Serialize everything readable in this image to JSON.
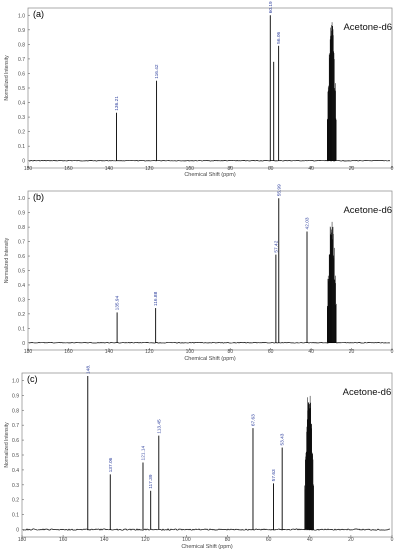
{
  "figure": {
    "panels": [
      {
        "id": "a",
        "letter": "(a)",
        "solvent_label": "Acetone-d6",
        "xlabel": "Chemical Shift (ppm)",
        "ylabel": "Normalized Intensity"
      },
      {
        "id": "b",
        "letter": "(b)",
        "solvent_label": "Acetone-d6",
        "xlabel": "Chemical Shift (ppm)",
        "ylabel": "Normalized Intensity"
      },
      {
        "id": "c",
        "letter": "(c)",
        "solvent_label": "Acetone-d6",
        "xlabel": "Chemical Shift (ppm)",
        "ylabel": "Normalized Intensity"
      }
    ]
  },
  "chart_data": [
    {
      "type": "line",
      "title": "",
      "panel": "(a)",
      "xlabel": "Chemical Shift (ppm)",
      "ylabel": "Normalized Intensity",
      "xlim": [
        180,
        0
      ],
      "ylim": [
        -0.05,
        1.05
      ],
      "x_ticks": [
        180,
        160,
        140,
        120,
        100,
        80,
        60,
        40,
        20,
        0
      ],
      "y_ticks": [
        0,
        0.1,
        0.2,
        0.3,
        0.4,
        0.5,
        0.6,
        0.7,
        0.8,
        0.9,
        1.0
      ],
      "annotation": "Acetone-d6",
      "peaks": [
        {
          "x": 136.21,
          "y": 0.33,
          "label": "136.21"
        },
        {
          "x": 116.42,
          "y": 0.55,
          "label": "116.42"
        },
        {
          "x": 60.19,
          "y": 1.0,
          "label": "60.19"
        },
        {
          "x": 58.5,
          "y": 0.68,
          "label": ""
        },
        {
          "x": 56.06,
          "y": 0.79,
          "label": "56.06"
        }
      ],
      "solvent_peak": {
        "center": 29.8,
        "height": 0.96
      }
    },
    {
      "type": "line",
      "title": "",
      "panel": "(b)",
      "xlabel": "Chemical Shift (ppm)",
      "ylabel": "Normalized Intensity",
      "xlim": [
        180,
        0
      ],
      "ylim": [
        -0.05,
        1.05
      ],
      "x_ticks": [
        180,
        160,
        140,
        120,
        100,
        80,
        60,
        40,
        20,
        0
      ],
      "y_ticks": [
        0,
        0.1,
        0.2,
        0.3,
        0.4,
        0.5,
        0.6,
        0.7,
        0.8,
        0.9,
        1.0
      ],
      "annotation": "Acetone-d6",
      "peaks": [
        {
          "x": 135.94,
          "y": 0.21,
          "label": "135.94"
        },
        {
          "x": 116.88,
          "y": 0.24,
          "label": "116.88"
        },
        {
          "x": 57.42,
          "y": 0.61,
          "label": "57.42"
        },
        {
          "x": 55.99,
          "y": 1.0,
          "label": "55.99"
        },
        {
          "x": 42.03,
          "y": 0.77,
          "label": "42.03"
        }
      ],
      "solvent_peak": {
        "center": 29.8,
        "height": 0.83
      }
    },
    {
      "type": "line",
      "title": "",
      "panel": "(c)",
      "xlabel": "Chemical Shift (ppm)",
      "ylabel": "Normalized Intensity",
      "xlim": [
        180,
        0
      ],
      "ylim": [
        -0.05,
        1.05
      ],
      "x_ticks": [
        180,
        160,
        140,
        120,
        100,
        80,
        60,
        40,
        20,
        0
      ],
      "y_ticks": [
        0,
        0.1,
        0.2,
        0.3,
        0.4,
        0.5,
        0.6,
        0.7,
        0.8,
        0.9,
        1.0
      ],
      "annotation": "Acetone-d6",
      "peaks": [
        {
          "x": 148.0,
          "y": 1.03,
          "label": "148."
        },
        {
          "x": 137.06,
          "y": 0.37,
          "label": "137.06"
        },
        {
          "x": 121.14,
          "y": 0.45,
          "label": "121.14"
        },
        {
          "x": 117.39,
          "y": 0.26,
          "label": "117.39"
        },
        {
          "x": 113.45,
          "y": 0.63,
          "label": "113.45"
        },
        {
          "x": 67.63,
          "y": 0.68,
          "label": "67.63"
        },
        {
          "x": 57.63,
          "y": 0.31,
          "label": "57.63"
        },
        {
          "x": 53.43,
          "y": 0.55,
          "label": "53.43"
        }
      ],
      "solvent_peak": {
        "center": 40.3,
        "height": 0.93
      }
    }
  ]
}
